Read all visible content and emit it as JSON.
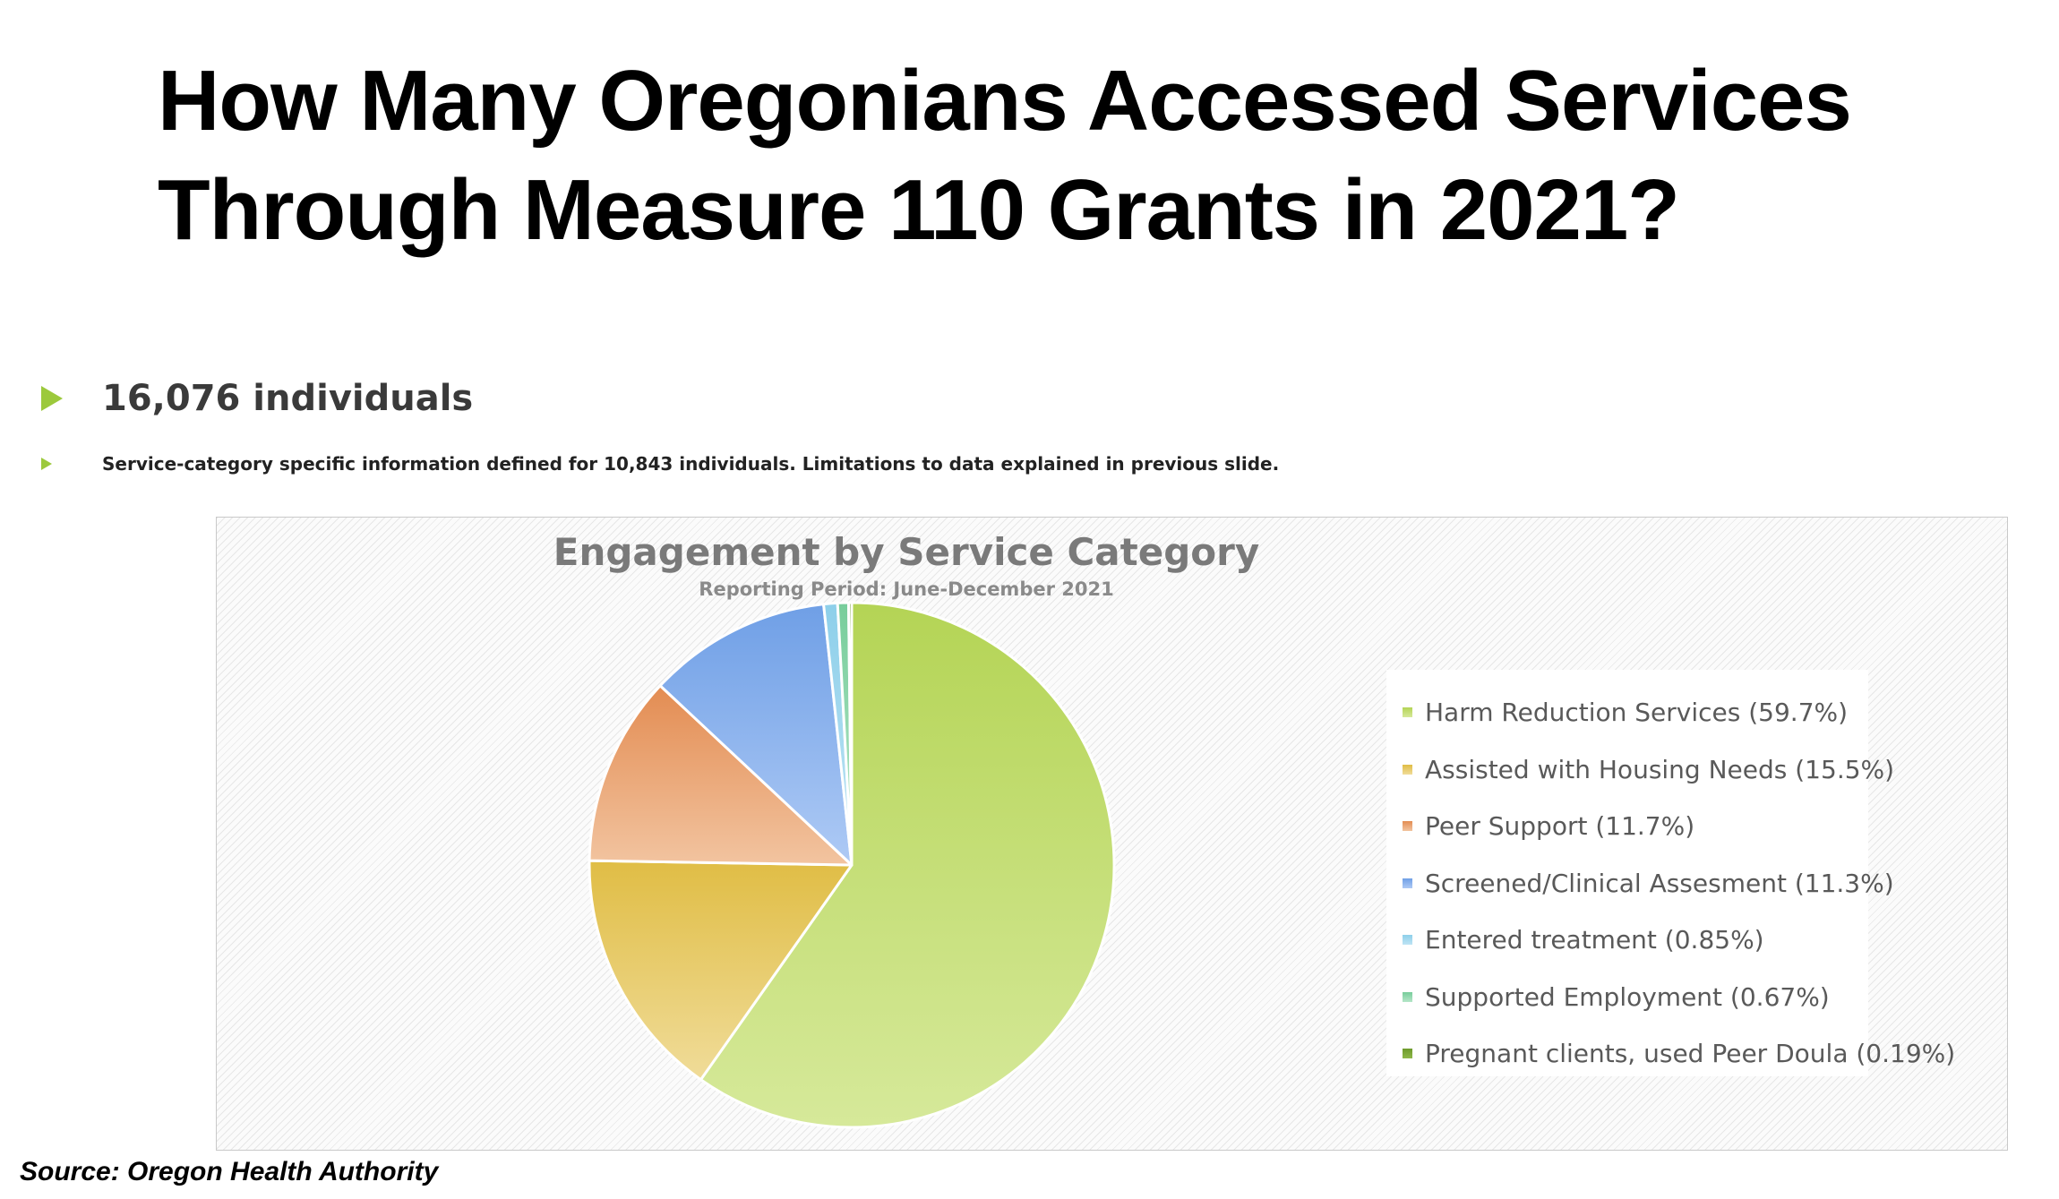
{
  "slide": {
    "title": "How Many Oregonians Accessed Services Through Measure 110 Grants in 2021?",
    "bullets": [
      "16,076 individuals",
      "Service-category specific information defined for 10,843 individuals. Limitations to data explained in previous slide."
    ],
    "source": "Source: Oregon Health Authority"
  },
  "chart_data": {
    "type": "pie",
    "title": "Engagement by Service Category",
    "subtitle": "Reporting Period: June-December 2021",
    "legend_position": "right",
    "grid": false,
    "start_angle": "12 o'clock",
    "direction": "clockwise",
    "slices": [
      {
        "label": "Harm Reduction Services",
        "value": 59.7,
        "legend": "Harm Reduction Services (59.7%)",
        "color_a": "#d6e99a",
        "color_b": "#b4d455"
      },
      {
        "label": "Assisted with Housing Needs",
        "value": 15.5,
        "legend": "Assisted with Housing Needs (15.5%)",
        "color_a": "#f0dc99",
        "color_b": "#e0bd45"
      },
      {
        "label": "Peer Support",
        "value": 11.7,
        "legend": "Peer Support (11.7%)",
        "color_a": "#f2c4a0",
        "color_b": "#e38c52"
      },
      {
        "label": "Screened/Clinical Assesment",
        "value": 11.3,
        "legend": "Screened/Clinical Assesment (11.3%)",
        "color_a": "#aecaf5",
        "color_b": "#6f9fe6"
      },
      {
        "label": "Entered treatment",
        "value": 0.85,
        "legend": "Entered treatment (0.85%)",
        "color_a": "#bfe4f4",
        "color_b": "#8dcfea"
      },
      {
        "label": "Supported Employment",
        "value": 0.67,
        "legend": "Supported Employment (0.67%)",
        "color_a": "#b5e6c8",
        "color_b": "#77cd9b"
      },
      {
        "label": "Pregnant clients, used Peer Doula",
        "value": 0.19,
        "legend": "Pregnant clients, used Peer Doula (0.19%)",
        "color_a": "#8fb84a",
        "color_b": "#6d9a2c"
      }
    ]
  }
}
